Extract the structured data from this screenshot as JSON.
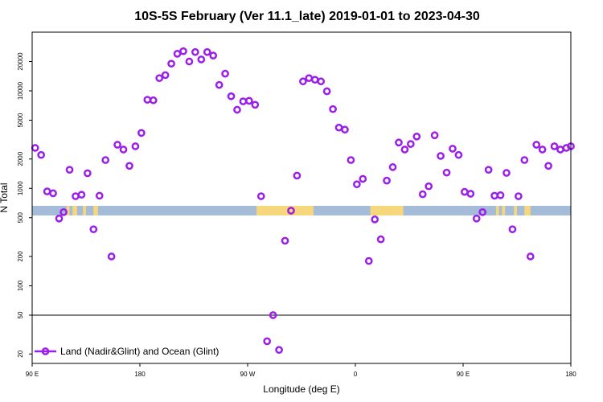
{
  "chart_data": {
    "type": "scatter",
    "title": "10S-5S February (Ver 11.1_late)   2019-01-01 to 2023-04-30",
    "xlabel": "Longitude (deg E)",
    "ylabel": "N Total",
    "y_scale": "log",
    "xlim": [
      90,
      450
    ],
    "ylim": [
      16,
      40000
    ],
    "x_ticks": [
      {
        "value": 90,
        "label": "90 E"
      },
      {
        "value": 162,
        "label": "180"
      },
      {
        "value": 234,
        "label": "90 W"
      },
      {
        "value": 306,
        "label": "0"
      },
      {
        "value": 378,
        "label": "90 E"
      },
      {
        "value": 450,
        "label": "180"
      }
    ],
    "y_ticks": [
      {
        "value": 20,
        "label": "20"
      },
      {
        "value": 50,
        "label": "50"
      },
      {
        "value": 100,
        "label": "100"
      },
      {
        "value": 200,
        "label": "200"
      },
      {
        "value": 500,
        "label": "500"
      },
      {
        "value": 1000,
        "label": "1000"
      },
      {
        "value": 2000,
        "label": "2000"
      },
      {
        "value": 5000,
        "label": "5000"
      },
      {
        "value": 10000,
        "label": "10000"
      },
      {
        "value": 20000,
        "label": "20000"
      }
    ],
    "reference_line": 50,
    "series_color": "#9b1fe8",
    "land_color": "#f7d77b",
    "ocean_color": "#a5bcd9",
    "grid": false,
    "legend_position": "bottom-left",
    "series": [
      {
        "name": "Land (Nadir&Glint) and Ocean (Glint)",
        "x": [
          92,
          96,
          100,
          104,
          108,
          111,
          115,
          119,
          123,
          127,
          131,
          135,
          139,
          143,
          147,
          151,
          155,
          159,
          163,
          167,
          171,
          175,
          179,
          183,
          187,
          191,
          195,
          199,
          203,
          207,
          211,
          215,
          219,
          223,
          227,
          231,
          235,
          239,
          243,
          247,
          251,
          255,
          259,
          263,
          267,
          271,
          275,
          279,
          283,
          287,
          291,
          295,
          299,
          303,
          307,
          311,
          315,
          319,
          323,
          327,
          331,
          335,
          339,
          343,
          347,
          351,
          355,
          359,
          363,
          367,
          371,
          375,
          379,
          383,
          387,
          391,
          395,
          399,
          403,
          407,
          411,
          415,
          419,
          423,
          427,
          431,
          435,
          439,
          443,
          447,
          450
        ],
        "y": [
          2600,
          2200,
          930,
          890,
          490,
          570,
          1550,
          830,
          860,
          1430,
          380,
          840,
          1950,
          200,
          2800,
          2500,
          1700,
          2700,
          3700,
          8100,
          8000,
          13500,
          14500,
          19000,
          24000,
          25500,
          20000,
          25000,
          21000,
          25000,
          23000,
          11500,
          15000,
          8800,
          6400,
          7800,
          7900,
          7200,
          830,
          27,
          50,
          22,
          290,
          590,
          1350,
          12500,
          13500,
          13000,
          12500,
          9900,
          6500,
          4200,
          4000,
          1950,
          1100,
          1250,
          180,
          480,
          300,
          1200,
          1650,
          2950,
          2500,
          2850,
          3400,
          870,
          1050,
          3500,
          2150,
          1450,
          2550,
          2200,
          920,
          880,
          490,
          570,
          1550,
          840,
          850,
          1440,
          380,
          830,
          1950,
          200,
          2800,
          2500,
          1700,
          2700,
          2500,
          2600,
          2700
        ]
      }
    ],
    "surface_strip": [
      {
        "type": "land",
        "x": [
          113,
          115
        ]
      },
      {
        "type": "land",
        "x": [
          117,
          120
        ]
      },
      {
        "type": "land",
        "x": [
          124,
          126
        ]
      },
      {
        "type": "land",
        "x": [
          131,
          134
        ]
      },
      {
        "type": "land",
        "x": [
          240,
          278
        ]
      },
      {
        "type": "land",
        "x": [
          316,
          338
        ]
      },
      {
        "type": "land",
        "x": [
          400,
          402
        ]
      },
      {
        "type": "land",
        "x": [
          404,
          406
        ]
      },
      {
        "type": "land",
        "x": [
          412,
          414
        ]
      },
      {
        "type": "land",
        "x": [
          419,
          423
        ]
      }
    ]
  }
}
